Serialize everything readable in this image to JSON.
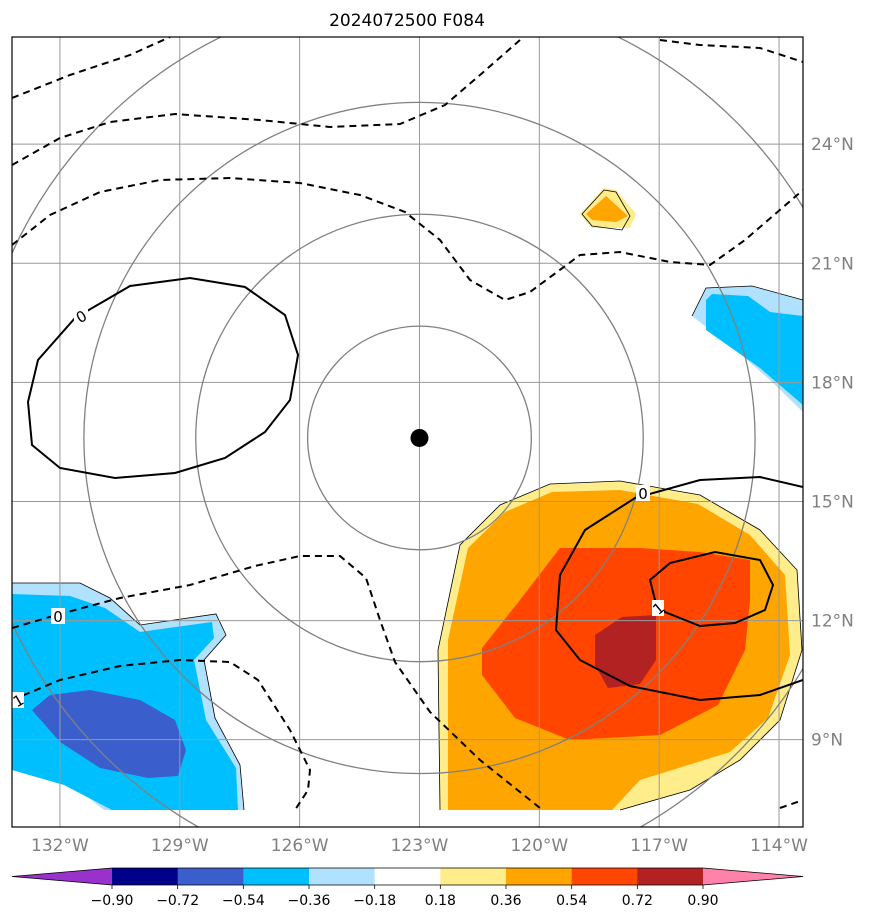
{
  "title": "2024072500 F084",
  "map": {
    "lon_range": [
      -133.2,
      -113.4
    ],
    "lat_range": [
      6.8,
      26.7
    ],
    "center_marker": {
      "lon": -123.0,
      "lat": 16.6
    },
    "range_rings_deg": [
      2.8,
      5.6,
      8.4,
      11.2
    ],
    "lat_gridlines": [
      9,
      12,
      15,
      18,
      21,
      24
    ],
    "lon_gridlines": [
      -132,
      -129,
      -126,
      -123,
      -120,
      -117,
      -114
    ],
    "lat_labels": [
      "9°N",
      "12°N",
      "15°N",
      "18°N",
      "21°N",
      "24°N"
    ],
    "lon_labels": [
      "132°W",
      "129°W",
      "126°W",
      "123°W",
      "120°W",
      "117°W",
      "114°W"
    ],
    "contour_labels": [
      "0",
      "0",
      "0",
      "1",
      "1"
    ]
  },
  "colorbar": {
    "colors": [
      "#9932cc",
      "#00008b",
      "#3a5fcd",
      "#00bfff",
      "#b0e2ff",
      "#ffffff",
      "#ffec8b",
      "#ffa500",
      "#ff4500",
      "#b22222",
      "#ff82ab"
    ],
    "tick_labels": [
      "−0.90",
      "−0.72",
      "−0.54",
      "−0.36",
      "−0.18",
      "0.18",
      "0.36",
      "0.54",
      "0.72",
      "0.90"
    ]
  },
  "colors": {
    "grid": "#999999",
    "ring": "#808080",
    "contour": "#000000"
  }
}
